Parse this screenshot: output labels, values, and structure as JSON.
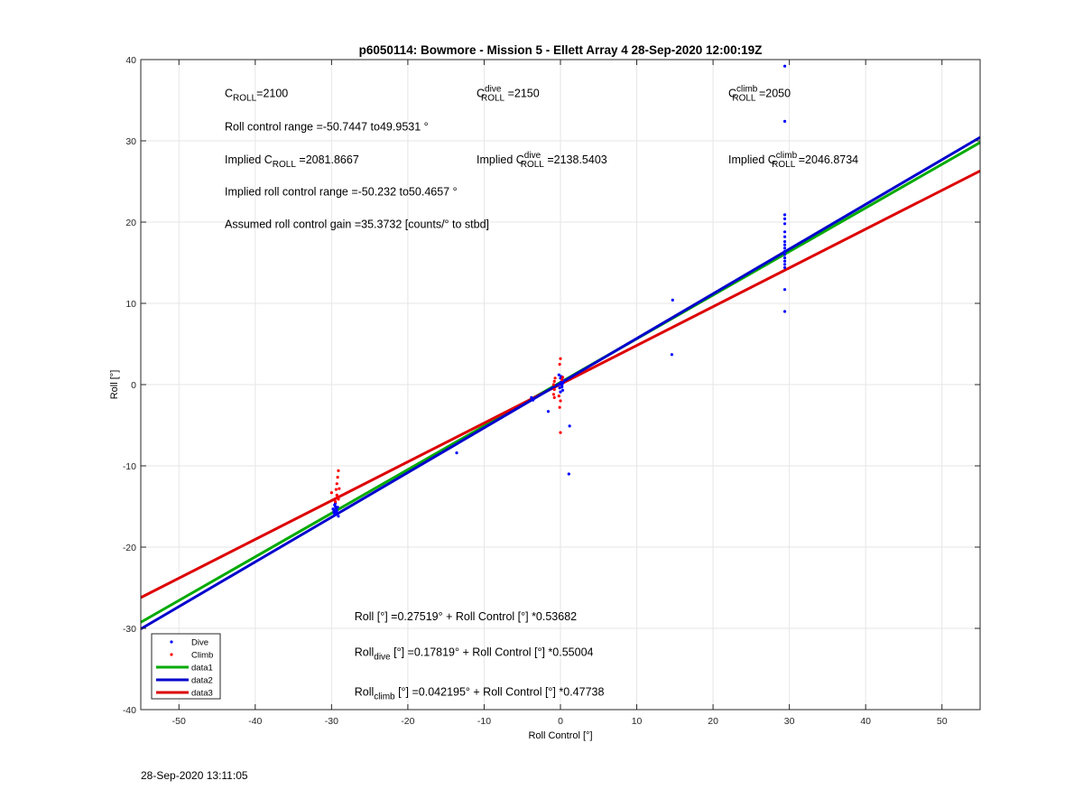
{
  "chart_data": {
    "type": "scatter",
    "title": "p6050114: Bowmore - Mission 5 - Ellett Array 4 28-Sep-2020 12:00:19Z",
    "xlabel": "Roll Control [°]",
    "ylabel": "Roll [°]",
    "xlim": [
      -55,
      55
    ],
    "ylim": [
      -40,
      40
    ],
    "xticks": [
      -50,
      -40,
      -30,
      -20,
      -10,
      0,
      10,
      20,
      30,
      40,
      50
    ],
    "yticks": [
      -40,
      -30,
      -20,
      -10,
      0,
      10,
      20,
      30,
      40
    ],
    "grid": true,
    "legend_position": "bottom-left",
    "legend": [
      "Dive",
      "Climb",
      "data1",
      "data2",
      "data3"
    ],
    "colors": {
      "dive": "#0000ff",
      "climb": "#ff0000",
      "data1": "#00aa00",
      "data2": "#0000cc",
      "data3": "#dd0000"
    },
    "series": [
      {
        "name": "Dive",
        "kind": "points",
        "points": [
          [
            -29.6,
            -14.8
          ],
          [
            -29.5,
            -15.0
          ],
          [
            -29.4,
            -15.2
          ],
          [
            -29.7,
            -15.4
          ],
          [
            -29.5,
            -15.6
          ],
          [
            -29.3,
            -15.8
          ],
          [
            -29.6,
            -16.0
          ],
          [
            -29.2,
            -15.1
          ],
          [
            -29.8,
            -15.3
          ],
          [
            -29.4,
            -15.9
          ],
          [
            -29.1,
            -16.2
          ],
          [
            -29.5,
            -14.6
          ],
          [
            -29.7,
            -15.7
          ],
          [
            -29.3,
            -15.5
          ],
          [
            -13.6,
            -8.4
          ],
          [
            -3.8,
            -1.6
          ],
          [
            -3.6,
            -1.9
          ],
          [
            -1.6,
            -3.3
          ],
          [
            1.2,
            -5.1
          ],
          [
            1.1,
            -11.0
          ],
          [
            14.7,
            10.4
          ],
          [
            14.6,
            3.7
          ],
          [
            -0.2,
            1.2
          ],
          [
            0.0,
            0.8
          ],
          [
            0.1,
            0.3
          ],
          [
            0.2,
            -0.1
          ],
          [
            -0.1,
            -0.4
          ],
          [
            0.3,
            -0.7
          ],
          [
            0.0,
            -0.9
          ],
          [
            0.4,
            0.5
          ],
          [
            0.1,
            1.0
          ],
          [
            -0.2,
            0.0
          ],
          [
            0.2,
            -0.3
          ],
          [
            0.3,
            0.2
          ],
          [
            29.4,
            39.2
          ],
          [
            29.4,
            32.4
          ],
          [
            29.4,
            20.9
          ],
          [
            29.4,
            20.4
          ],
          [
            29.4,
            19.8
          ],
          [
            29.4,
            18.8
          ],
          [
            29.4,
            18.2
          ],
          [
            29.4,
            17.6
          ],
          [
            29.4,
            17.2
          ],
          [
            29.4,
            16.8
          ],
          [
            29.4,
            16.4
          ],
          [
            29.4,
            16.0
          ],
          [
            29.4,
            15.6
          ],
          [
            29.4,
            15.2
          ],
          [
            29.4,
            14.8
          ],
          [
            29.4,
            14.4
          ],
          [
            29.4,
            11.7
          ],
          [
            29.4,
            9.0
          ]
        ]
      },
      {
        "name": "Climb",
        "kind": "points",
        "points": [
          [
            -29.1,
            -10.6
          ],
          [
            -29.2,
            -11.4
          ],
          [
            -29.3,
            -12.2
          ],
          [
            -29.4,
            -12.9
          ],
          [
            -29.3,
            -13.6
          ],
          [
            -29.1,
            -14.1
          ],
          [
            -29.5,
            -14.4
          ],
          [
            -30.0,
            -13.3
          ],
          [
            -29.2,
            -13.9
          ],
          [
            -29.0,
            -12.8
          ],
          [
            -0.7,
            0.8
          ],
          [
            -0.8,
            0.4
          ],
          [
            -0.9,
            0.0
          ],
          [
            -0.8,
            -0.6
          ],
          [
            -0.9,
            -1.2
          ],
          [
            -0.8,
            -1.6
          ],
          [
            0.0,
            3.2
          ],
          [
            -0.1,
            2.5
          ],
          [
            0.0,
            -2.0
          ],
          [
            -0.1,
            -2.8
          ],
          [
            0.0,
            -5.9
          ],
          [
            -0.2,
            -1.4
          ],
          [
            0.3,
            0.9
          ],
          [
            0.2,
            0.6
          ]
        ]
      },
      {
        "name": "data1",
        "kind": "line",
        "x": [
          -55,
          55
        ],
        "y": [
          -29.25,
          29.8
        ]
      },
      {
        "name": "data2",
        "kind": "line",
        "x": [
          -55,
          55
        ],
        "y": [
          -30.07,
          30.43
        ]
      },
      {
        "name": "data3",
        "kind": "line",
        "x": [
          -55,
          55
        ],
        "y": [
          -26.21,
          26.3
        ]
      }
    ],
    "annotations": [
      {
        "id": "c_roll",
        "at": [
          -44,
          35.4
        ],
        "parts": [
          [
            "C",
            ""
          ],
          [
            "ROLL",
            "sub"
          ],
          [
            "=2100",
            ""
          ]
        ]
      },
      {
        "id": "c_roll_dive",
        "at": [
          -11,
          35.4
        ],
        "parts": [
          [
            "C",
            ""
          ],
          [
            "dive",
            "supsub"
          ],
          [
            "ROLL",
            "supsub2"
          ],
          [
            " =2150",
            ""
          ]
        ]
      },
      {
        "id": "c_roll_climb",
        "at": [
          22,
          35.4
        ],
        "parts": [
          [
            "C",
            ""
          ],
          [
            "climb",
            "supsub"
          ],
          [
            "ROLL",
            "supsub2"
          ],
          [
            " =2050",
            ""
          ]
        ]
      },
      {
        "id": "roll_range",
        "at": [
          -44,
          31.3
        ],
        "parts": [
          [
            "Roll control range =-50.7447 to49.9531 °",
            ""
          ]
        ]
      },
      {
        "id": "implied_c_roll",
        "at": [
          -44,
          27.2
        ],
        "parts": [
          [
            "Implied C",
            ""
          ],
          [
            "ROLL",
            "sub"
          ],
          [
            " =2081.8667",
            ""
          ]
        ]
      },
      {
        "id": "implied_c_roll_dive",
        "at": [
          -11,
          27.2
        ],
        "parts": [
          [
            "Implied C",
            ""
          ],
          [
            "dive",
            "supsub"
          ],
          [
            "ROLL",
            "supsub2"
          ],
          [
            " =2138.5403",
            ""
          ]
        ]
      },
      {
        "id": "implied_c_roll_climb",
        "at": [
          22,
          27.2
        ],
        "parts": [
          [
            "Implied C",
            ""
          ],
          [
            "climb",
            "supsub"
          ],
          [
            "ROLL",
            "supsub2"
          ],
          [
            " =2046.8734",
            ""
          ]
        ]
      },
      {
        "id": "implied_range",
        "at": [
          -44,
          23.3
        ],
        "parts": [
          [
            "Implied roll control range =-50.232 to50.4657 °",
            ""
          ]
        ]
      },
      {
        "id": "gain",
        "at": [
          -44,
          19.3
        ],
        "parts": [
          [
            "Assumed roll control gain =35.3732 [counts/° to stbd]",
            ""
          ]
        ]
      },
      {
        "id": "fit_all",
        "at": [
          -27,
          -29.0
        ],
        "parts": [
          [
            "Roll [°] =0.27519° + Roll Control [°] *0.53682",
            ""
          ]
        ]
      },
      {
        "id": "fit_dive",
        "at": [
          -27,
          -33.4
        ],
        "parts": [
          [
            "Roll",
            ""
          ],
          [
            "dive",
            "sub"
          ],
          [
            " [°] =0.17819° + Roll Control [°] *0.55004",
            ""
          ]
        ]
      },
      {
        "id": "fit_climb",
        "at": [
          -27,
          -38.3
        ],
        "parts": [
          [
            "Roll",
            ""
          ],
          [
            "climb",
            "sub"
          ],
          [
            " [°] =0.042195° + Roll Control [°] *0.47738",
            ""
          ]
        ]
      }
    ]
  },
  "footer": {
    "timestamp": "28-Sep-2020 13:11:05"
  }
}
